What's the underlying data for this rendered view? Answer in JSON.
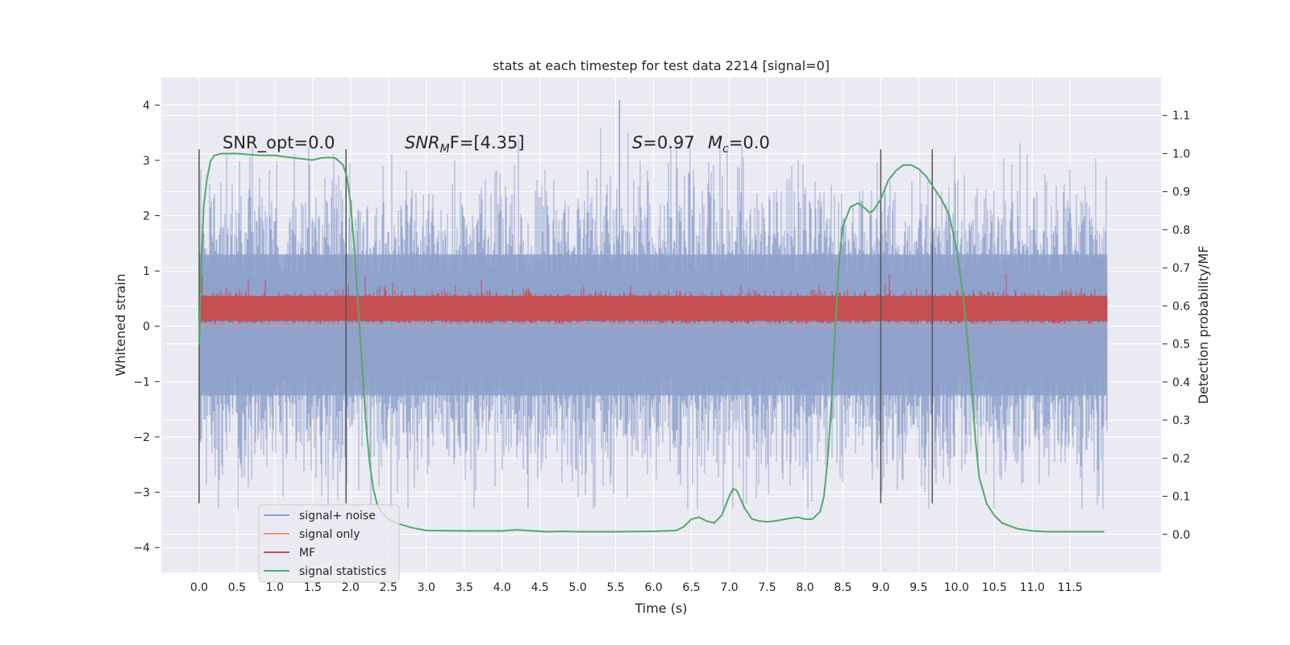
{
  "chart_data": {
    "type": "line",
    "title": "stats at each timestep for test data 2214 [signal=0]",
    "xlabel": "Time (s)",
    "ylabel": "Whitened strain",
    "y2label": "Detection probability/MF",
    "xlim": [
      -0.5,
      12.7
    ],
    "ylim": [
      -4.45,
      4.5
    ],
    "y2lim": [
      -0.1,
      1.2
    ],
    "xticks": [
      0.0,
      0.5,
      1.0,
      1.5,
      2.0,
      2.5,
      3.0,
      3.5,
      4.0,
      4.5,
      5.0,
      5.5,
      6.0,
      6.5,
      7.0,
      7.5,
      8.0,
      8.5,
      9.0,
      9.5,
      10.0,
      10.5,
      11.0,
      11.5
    ],
    "xtick_labels": [
      "0.0",
      "0.5",
      "1.0",
      "1.5",
      "2.0",
      "2.5",
      "3.0",
      "3.5",
      "4.0",
      "4.5",
      "5.0",
      "5.5",
      "6.0",
      "6.5",
      "7.0",
      "7.5",
      "8.0",
      "8.5",
      "9.0",
      "9.5",
      "10.0",
      "10.5",
      "11.0",
      "11.5"
    ],
    "yticks": [
      4,
      3,
      2,
      1,
      0,
      -1,
      -2,
      -3,
      -4
    ],
    "ytick_labels": [
      "4",
      "3",
      "2",
      "1",
      "0",
      "−1",
      "−2",
      "−3",
      "−4"
    ],
    "y2ticks": [
      1.1,
      1.0,
      0.9,
      0.8,
      0.7,
      0.6,
      0.5,
      0.4,
      0.3,
      0.2,
      0.1,
      0.0
    ],
    "y2tick_labels": [
      "1.1",
      "1.0",
      "0.9",
      "0.8",
      "0.7",
      "0.6",
      "0.5",
      "0.4",
      "0.3",
      "0.2",
      "0.1",
      "0.0"
    ],
    "grid": true,
    "legend_position": "lower-left",
    "annotations": {
      "snr_opt": "SNR_opt=0.0",
      "snr_mf_main": "SNR",
      "snr_mf_sub": "M",
      "snr_mf_rest": "F=[4.35]",
      "s_italic": "S",
      "s_rest": "=0.97",
      "mc_italic": "M",
      "mc_sub": "c",
      "mc_rest": "=0.0"
    },
    "vertical_lines_x": [
      0.0,
      1.94,
      9.0,
      9.68
    ],
    "vertical_lines_yrange": [
      -3.2,
      3.2
    ],
    "series": [
      {
        "name": "signal+ noise",
        "color": "#8da0cb",
        "noise_band": {
          "t_start": 0.0,
          "t_end": 11.99,
          "typical_amplitude": 1.3,
          "max_value": 4.1,
          "min_value": -3.3
        }
      },
      {
        "name": "signal only",
        "color": "#e8967a",
        "flat_value": 0.0
      },
      {
        "name": "MF",
        "color": "#c44e52",
        "noise_band": {
          "t_start": 0.0,
          "t_end": 11.99,
          "baseline": 0.3,
          "typical_amplitude": 0.2,
          "max_value": 0.95,
          "min_value": 0.05
        }
      },
      {
        "name": "signal statistics",
        "color": "#55a868",
        "x": [
          0.0,
          0.03,
          0.06,
          0.1,
          0.15,
          0.2,
          0.3,
          0.5,
          0.8,
          1.0,
          1.2,
          1.4,
          1.5,
          1.6,
          1.7,
          1.8,
          1.9,
          1.95,
          2.0,
          2.05,
          2.1,
          2.15,
          2.2,
          2.25,
          2.3,
          2.35,
          2.4,
          2.5,
          2.6,
          2.8,
          3.0,
          3.5,
          3.8,
          4.0,
          4.2,
          4.4,
          4.6,
          4.8,
          5.0,
          5.5,
          6.0,
          6.3,
          6.4,
          6.5,
          6.6,
          6.7,
          6.8,
          6.9,
          7.0,
          7.05,
          7.1,
          7.2,
          7.3,
          7.4,
          7.5,
          7.6,
          7.8,
          7.9,
          8.0,
          8.1,
          8.2,
          8.25,
          8.3,
          8.35,
          8.4,
          8.45,
          8.5,
          8.6,
          8.7,
          8.8,
          8.85,
          8.9,
          9.0,
          9.1,
          9.2,
          9.3,
          9.4,
          9.5,
          9.6,
          9.7,
          9.8,
          9.9,
          10.0,
          10.05,
          10.1,
          10.15,
          10.2,
          10.25,
          10.3,
          10.4,
          10.5,
          10.6,
          10.8,
          11.0,
          11.2,
          11.5,
          11.8,
          11.95
        ],
        "y": [
          0.5,
          0.72,
          0.86,
          0.93,
          0.98,
          0.995,
          1.0,
          1.0,
          0.995,
          0.995,
          0.99,
          0.985,
          0.983,
          0.988,
          0.99,
          0.988,
          0.97,
          0.94,
          0.87,
          0.75,
          0.6,
          0.45,
          0.3,
          0.19,
          0.12,
          0.08,
          0.06,
          0.04,
          0.03,
          0.018,
          0.01,
          0.009,
          0.009,
          0.009,
          0.012,
          0.009,
          0.007,
          0.008,
          0.007,
          0.007,
          0.008,
          0.01,
          0.02,
          0.04,
          0.045,
          0.035,
          0.03,
          0.05,
          0.1,
          0.12,
          0.115,
          0.07,
          0.04,
          0.035,
          0.033,
          0.035,
          0.042,
          0.045,
          0.04,
          0.04,
          0.06,
          0.1,
          0.2,
          0.35,
          0.55,
          0.72,
          0.81,
          0.86,
          0.87,
          0.855,
          0.845,
          0.85,
          0.88,
          0.93,
          0.955,
          0.97,
          0.97,
          0.96,
          0.94,
          0.91,
          0.88,
          0.84,
          0.75,
          0.68,
          0.6,
          0.5,
          0.38,
          0.25,
          0.15,
          0.08,
          0.05,
          0.03,
          0.015,
          0.009,
          0.007,
          0.007,
          0.007,
          0.007
        ]
      }
    ]
  }
}
